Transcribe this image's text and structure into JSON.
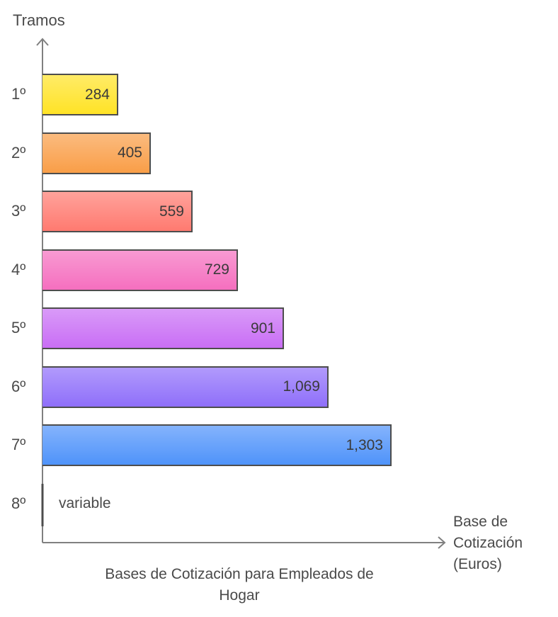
{
  "chart_data": {
    "type": "bar",
    "orientation": "horizontal",
    "title": "Bases de Cotización para Empleados de Hogar",
    "xlabel": "Base de Cotización (Euros)",
    "ylabel": "Tramos",
    "categories": [
      "1º",
      "2º",
      "3º",
      "4º",
      "5º",
      "6º",
      "7º",
      "8º"
    ],
    "values": [
      284,
      405,
      559,
      729,
      901,
      1069,
      1303,
      null
    ],
    "value_labels": [
      "284",
      "405",
      "559",
      "729",
      "901",
      "1,069",
      "1,303",
      "variable"
    ],
    "colors": [
      "#ffe326",
      "#f99e48",
      "#ff7a70",
      "#f56fbf",
      "#c96ef5",
      "#8f6ffa",
      "#4f93fa",
      "#4d4d4d"
    ],
    "grid": false,
    "legend": null,
    "xlim": [
      0,
      1400
    ]
  },
  "labels": {
    "y_title": "Tramos",
    "x_title_lines": [
      "Base de",
      "Cotización",
      "(Euros)"
    ],
    "caption_lines": [
      "Bases de Cotización para Empleados de",
      "Hogar"
    ]
  }
}
